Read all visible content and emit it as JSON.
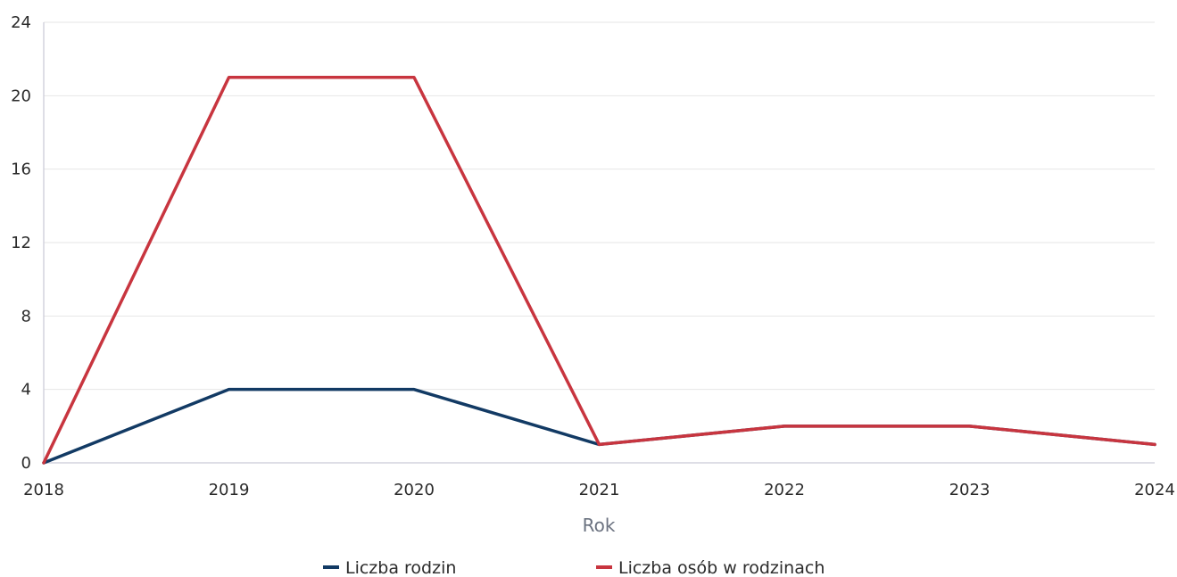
{
  "chart_data": {
    "type": "line",
    "categories": [
      "2018",
      "2019",
      "2020",
      "2021",
      "2022",
      "2023",
      "2024"
    ],
    "series": [
      {
        "name": "Liczba rodzin",
        "values": [
          0,
          4,
          4,
          1,
          2,
          2,
          1
        ],
        "color": "#123a64"
      },
      {
        "name": "Liczba osób w rodzinach",
        "values": [
          0,
          21,
          21,
          1,
          2,
          2,
          1
        ],
        "color": "#c8353f"
      }
    ],
    "xlabel": "Rok",
    "ylabel": "",
    "ylim": [
      0,
      24
    ],
    "yticks": [
      "0",
      "4",
      "8",
      "12",
      "16",
      "20",
      "24"
    ],
    "grid": true,
    "legend_position": "bottom-center"
  }
}
